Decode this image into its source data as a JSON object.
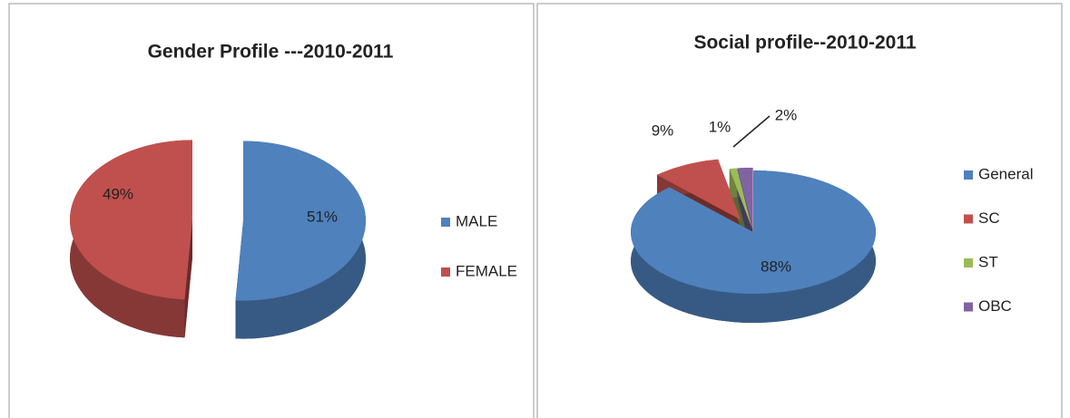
{
  "chart_data": [
    {
      "type": "pie",
      "title": "Gender Profile ---2010-2011",
      "categories": [
        "MALE",
        "FEMALE"
      ],
      "values": [
        51,
        49
      ],
      "value_labels": [
        "51%",
        "49%"
      ],
      "colors": [
        "#4f81bd",
        "#c0504d"
      ],
      "legend": "right"
    },
    {
      "type": "pie",
      "title": "Social profile--2010-2011",
      "categories": [
        "General",
        "SC",
        "ST",
        "OBC"
      ],
      "values": [
        88,
        9,
        1,
        2
      ],
      "value_labels": [
        "88%",
        "9%",
        "1%",
        "2%"
      ],
      "colors": [
        "#4f81bd",
        "#c0504d",
        "#9bbb59",
        "#8064a2"
      ],
      "legend": "right"
    }
  ]
}
